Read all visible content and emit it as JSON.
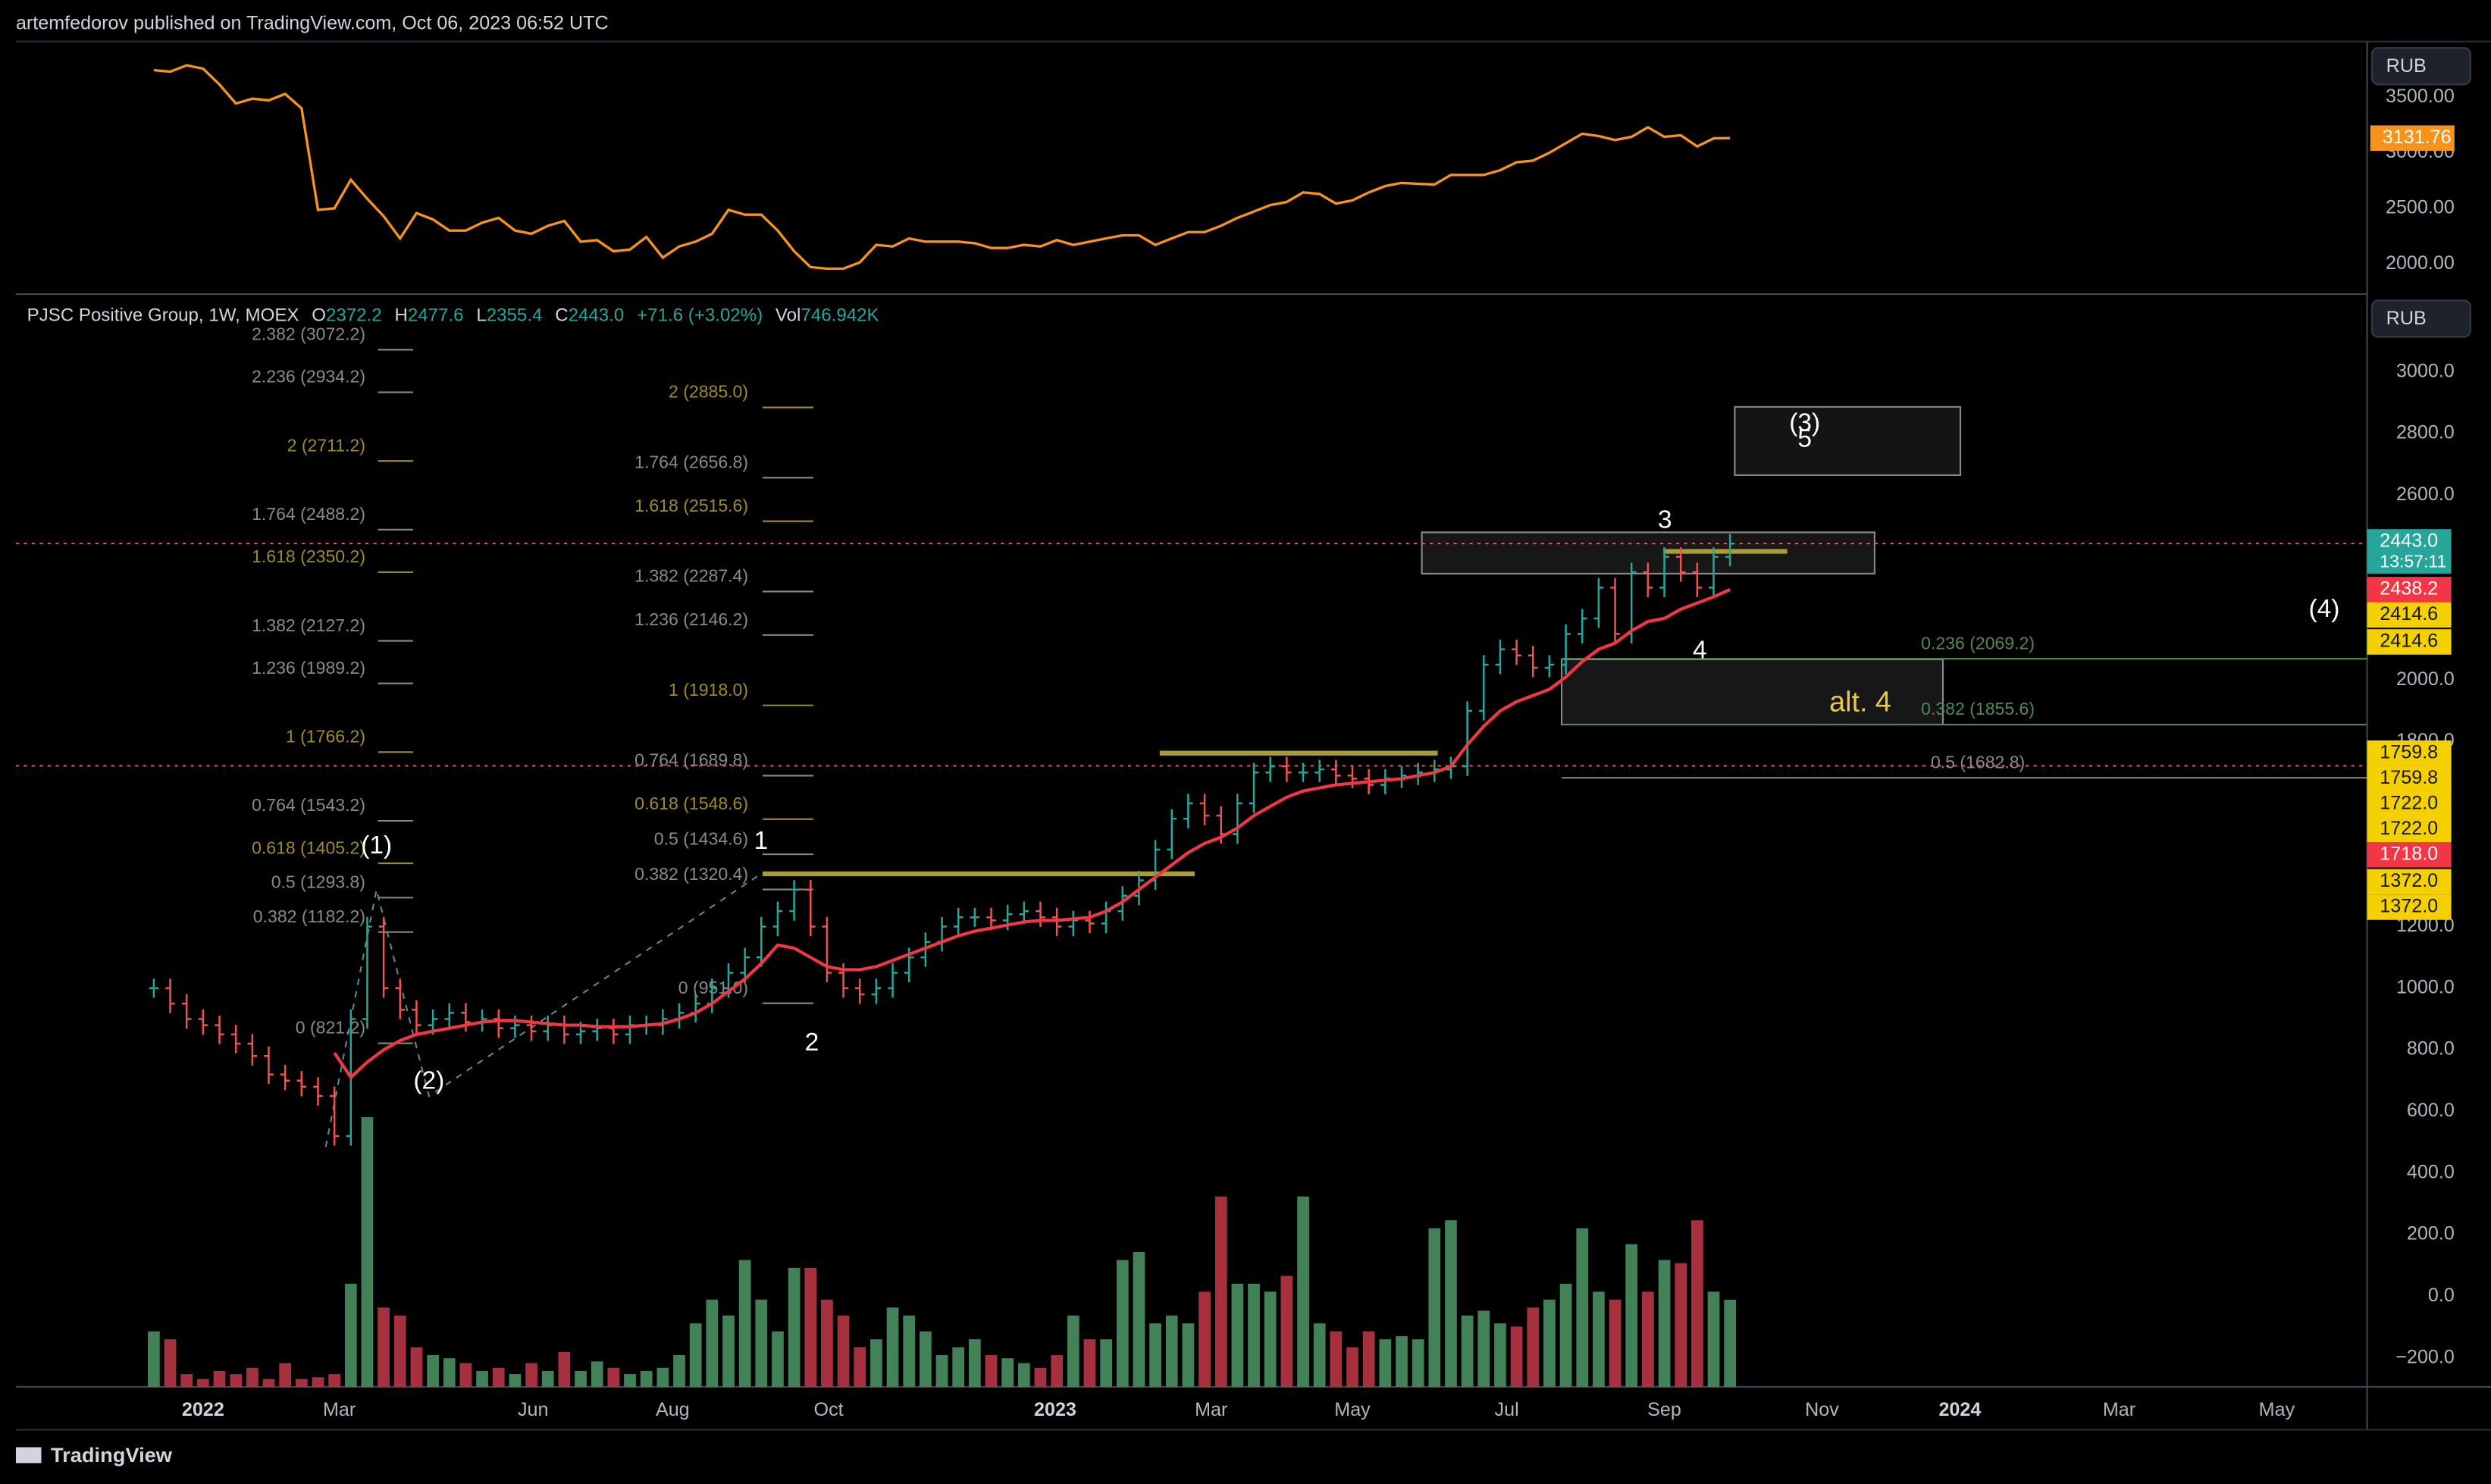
{
  "header": {
    "publisher": "artemfedorov published on TradingView.com, Oct 06, 2023 06:52 UTC"
  },
  "footer": {
    "brand": "TradingView"
  },
  "chart_data": [
    {
      "type": "line",
      "currency": "RUB",
      "color": "#f7931a",
      "x": [
        -3,
        -2,
        -1,
        0,
        1,
        2,
        3,
        4,
        5,
        6,
        7,
        8,
        9,
        10,
        11,
        12,
        13,
        14,
        15,
        16,
        17,
        18,
        19,
        20,
        21,
        22,
        23,
        24,
        25,
        26,
        27,
        28,
        29,
        30,
        31,
        32,
        33,
        34,
        35,
        36,
        37,
        38,
        39,
        40,
        41,
        42,
        43,
        44,
        45,
        46,
        47,
        48,
        49,
        50,
        51,
        52,
        53,
        54,
        55,
        56,
        57,
        58,
        59,
        60,
        61,
        62,
        63,
        64,
        65,
        66,
        67,
        68,
        69,
        70,
        71,
        72,
        73,
        74,
        75,
        76,
        77,
        78,
        79,
        80,
        81,
        82,
        83,
        84,
        85,
        86,
        87,
        88,
        89,
        90,
        91,
        92,
        93
      ],
      "values": [
        3743,
        3729,
        3786,
        3757,
        3614,
        3443,
        3486,
        3471,
        3529,
        3400,
        2486,
        2500,
        2757,
        2586,
        2429,
        2229,
        2457,
        2400,
        2300,
        2300,
        2371,
        2414,
        2300,
        2271,
        2343,
        2386,
        2200,
        2214,
        2114,
        2129,
        2243,
        2057,
        2157,
        2200,
        2271,
        2486,
        2443,
        2443,
        2300,
        2114,
        1971,
        1957,
        1957,
        2014,
        2171,
        2157,
        2229,
        2200,
        2200,
        2200,
        2186,
        2143,
        2143,
        2171,
        2157,
        2214,
        2171,
        2200,
        2230,
        2257,
        2257,
        2171,
        2229,
        2286,
        2286,
        2343,
        2414,
        2471,
        2529,
        2557,
        2643,
        2629,
        2543,
        2571,
        2643,
        2700,
        2729,
        2720,
        2714,
        2800,
        2800,
        2800,
        2843,
        2914,
        2929,
        3000,
        3086,
        3171,
        3150,
        3114,
        3143,
        3229,
        3143,
        3157,
        3057,
        3129,
        3131.76
      ],
      "last_label": "3131.76",
      "xlim": [
        -11.4,
        131.8
      ],
      "ylim": [
        1757,
        3986
      ],
      "yticks": [
        {
          "value": 2000,
          "label": "2000.00"
        },
        {
          "value": 2500,
          "label": "2500.00"
        },
        {
          "value": 3000,
          "label": "3000.00"
        },
        {
          "value": 3500,
          "label": "3500.00"
        }
      ]
    },
    {
      "type": "price",
      "title": "PJSC Positive Group, 1W, MOEX",
      "currency": "RUB",
      "legend": [
        {
          "key": "O",
          "value": "2372.2"
        },
        {
          "key": "H",
          "value": "2477.6"
        },
        {
          "key": "L",
          "value": "2355.4"
        },
        {
          "key": "C",
          "value": "2443.0"
        },
        {
          "key": "",
          "value": "+71.6 (+3.02%)"
        },
        {
          "key": "Vol",
          "value": "746.942K"
        }
      ],
      "up_color": "#26a69a",
      "down_color": "#ef5350",
      "ma_color": "#f23645",
      "x": [
        -3,
        -2,
        -1,
        0,
        1,
        2,
        3,
        4,
        5,
        6,
        7,
        8,
        9,
        10,
        11,
        12,
        13,
        14,
        15,
        16,
        17,
        18,
        19,
        20,
        21,
        22,
        23,
        24,
        25,
        26,
        27,
        28,
        29,
        30,
        31,
        32,
        33,
        34,
        35,
        36,
        37,
        38,
        39,
        40,
        41,
        42,
        43,
        44,
        45,
        46,
        47,
        48,
        49,
        50,
        51,
        52,
        53,
        54,
        55,
        56,
        57,
        58,
        59,
        60,
        61,
        62,
        63,
        64,
        65,
        66,
        67,
        68,
        69,
        70,
        71,
        72,
        73,
        74,
        75,
        76,
        77,
        78,
        79,
        80,
        81,
        82,
        83,
        84,
        85,
        86,
        87,
        88,
        89,
        90,
        91,
        92,
        93
      ],
      "close": [
        1000,
        950,
        900,
        880,
        850,
        820,
        780,
        720,
        700,
        680,
        650,
        520,
        900,
        1200,
        1000,
        930,
        880,
        900,
        920,
        890,
        900,
        870,
        880,
        860,
        880,
        850,
        860,
        870,
        850,
        880,
        880,
        900,
        920,
        950,
        1000,
        1050,
        1100,
        1200,
        1250,
        1320,
        1200,
        1050,
        1000,
        980,
        1000,
        1050,
        1100,
        1150,
        1200,
        1230,
        1230,
        1220,
        1240,
        1250,
        1230,
        1200,
        1220,
        1210,
        1250,
        1300,
        1350,
        1450,
        1550,
        1600,
        1560,
        1500,
        1600,
        1700,
        1720,
        1700,
        1700,
        1710,
        1690,
        1680,
        1660,
        1680,
        1690,
        1700,
        1710,
        1720,
        1900,
        2050,
        2100,
        2080,
        2040,
        2050,
        2150,
        2200,
        2300,
        2150,
        2350,
        2300,
        2400,
        2350,
        2300,
        2400,
        2443
      ],
      "ma": [
        null,
        null,
        null,
        null,
        null,
        null,
        null,
        null,
        null,
        null,
        null,
        790,
        711,
        760,
        800,
        830,
        850,
        860,
        870,
        880,
        890,
        895,
        895,
        890,
        885,
        880,
        880,
        875,
        875,
        875,
        880,
        885,
        900,
        920,
        950,
        990,
        1030,
        1080,
        1140,
        1130,
        1100,
        1070,
        1060,
        1060,
        1070,
        1090,
        1110,
        1130,
        1150,
        1170,
        1185,
        1195,
        1205,
        1215,
        1220,
        1220,
        1225,
        1230,
        1250,
        1280,
        1320,
        1360,
        1400,
        1440,
        1470,
        1490,
        1520,
        1560,
        1590,
        1620,
        1640,
        1650,
        1660,
        1665,
        1670,
        1675,
        1680,
        1690,
        1700,
        1720,
        1790,
        1850,
        1900,
        1930,
        1950,
        1970,
        2010,
        2060,
        2100,
        2120,
        2160,
        2190,
        2200,
        2230,
        2250,
        2270,
        2294
      ],
      "volume": [
        476,
        408,
        109,
        68,
        136,
        109,
        163,
        68,
        204,
        68,
        82,
        109,
        884,
        2312,
        680,
        612,
        340,
        272,
        245,
        204,
        136,
        163,
        109,
        204,
        136,
        299,
        136,
        218,
        163,
        109,
        136,
        163,
        272,
        544,
        748,
        612,
        1088,
        748,
        476,
        1020,
        1020,
        748,
        612,
        340,
        408,
        680,
        612,
        476,
        272,
        340,
        408,
        272,
        245,
        204,
        163,
        272,
        612,
        408,
        408,
        1088,
        1156,
        544,
        612,
        544,
        816,
        1632,
        884,
        884,
        816,
        952,
        1632,
        544,
        476,
        340,
        476,
        408,
        435,
        408,
        1360,
        1428,
        612,
        653,
        544,
        517,
        680,
        748,
        884,
        1360,
        816,
        748,
        1224,
        816,
        1088,
        1061,
        1428,
        816,
        747
      ],
      "volume_lim": [
        0,
        9300
      ],
      "xlim": [
        -11.4,
        131.8
      ],
      "xticks": [
        {
          "value": 0,
          "label": "2022"
        },
        {
          "value": 8.3,
          "label": "Mar"
        },
        {
          "value": 20.1,
          "label": "Jun"
        },
        {
          "value": 28.6,
          "label": "Aug"
        },
        {
          "value": 38.1,
          "label": "Oct"
        },
        {
          "value": 51.9,
          "label": "2023"
        },
        {
          "value": 61.4,
          "label": "Mar"
        },
        {
          "value": 70,
          "label": "May"
        },
        {
          "value": 79.4,
          "label": "Jul"
        },
        {
          "value": 89,
          "label": "Sep"
        },
        {
          "value": 98.6,
          "label": "Nov"
        },
        {
          "value": 107,
          "label": "2024"
        },
        {
          "value": 116.7,
          "label": "Mar"
        },
        {
          "value": 126.3,
          "label": "May"
        }
      ],
      "ylim": [
        -294,
        3227
      ],
      "yticks": [
        {
          "value": -200,
          "label": "−200.0"
        },
        {
          "value": 0,
          "label": "0.0"
        },
        {
          "value": 200,
          "label": "200.0"
        },
        {
          "value": 400,
          "label": "400.0"
        },
        {
          "value": 600,
          "label": "600.0"
        },
        {
          "value": 800,
          "label": "800.0"
        },
        {
          "value": 1000,
          "label": "1000.0"
        },
        {
          "value": 1200,
          "label": "1200.0"
        },
        {
          "value": 1800,
          "label": "1800.0"
        },
        {
          "value": 2000,
          "label": "2000.0"
        },
        {
          "value": 2600,
          "label": "2600.0"
        },
        {
          "value": 2800,
          "label": "2800.0"
        },
        {
          "value": 3000,
          "label": "3000.0"
        }
      ],
      "fib_sets": [
        {
          "levels": [
            {
              "label": "2.382 (3072.2)",
              "value": 3072.2,
              "color": "#8a8a8a"
            },
            {
              "label": "2.236 (2934.2)",
              "value": 2934.2,
              "color": "#8a8a8a"
            },
            {
              "label": "2 (2711.2)",
              "value": 2711.2,
              "color": "#9c8c2c"
            },
            {
              "label": "1.764 (2488.2)",
              "value": 2488.2,
              "color": "#8a8a8a"
            },
            {
              "label": "1.618 (2350.2)",
              "value": 2350.2,
              "color": "#9c8c2c"
            },
            {
              "label": "1.382 (2127.2)",
              "value": 2127.2,
              "color": "#8a8a8a"
            },
            {
              "label": "1.236 (1989.2)",
              "value": 1989.2,
              "color": "#8a8a8a"
            },
            {
              "label": "1 (1766.2)",
              "value": 1766.2,
              "color": "#9c8c2c"
            },
            {
              "label": "0.764 (1543.2)",
              "value": 1543.2,
              "color": "#8a8a8a"
            },
            {
              "label": "0.618 (1405.2)",
              "value": 1405.2,
              "color": "#9c8c2c"
            },
            {
              "label": "0.5 (1293.8)",
              "value": 1293.8,
              "color": "#8a8a8a"
            },
            {
              "label": "0.382 (1182.2)",
              "value": 1182.2,
              "color": "#8a8a8a"
            },
            {
              "label": "0 (821.2)",
              "value": 821.2,
              "color": "#8a8a8a"
            }
          ]
        },
        {
          "levels": [
            {
              "label": "2 (2885.0)",
              "value": 2885.0,
              "color": "#9c8c2c"
            },
            {
              "label": "1.764 (2656.8)",
              "value": 2656.8,
              "color": "#8a8a8a"
            },
            {
              "label": "1.618 (2515.6)",
              "value": 2515.6,
              "color": "#9c8c2c"
            },
            {
              "label": "1.382 (2287.4)",
              "value": 2287.4,
              "color": "#8a8a8a"
            },
            {
              "label": "1.236 (2146.2)",
              "value": 2146.2,
              "color": "#8a8a8a"
            },
            {
              "label": "1 (1918.0)",
              "value": 1918.0,
              "color": "#9c8c2c"
            },
            {
              "label": "0.764 (1689.8)",
              "value": 1689.8,
              "color": "#8a8a8a"
            },
            {
              "label": "0.618 (1548.6)",
              "value": 1548.6,
              "color": "#9c8c2c"
            },
            {
              "label": "0.5 (1434.6)",
              "value": 1434.6,
              "color": "#8a8a8a"
            },
            {
              "label": "0.382 (1320.4)",
              "value": 1320.4,
              "color": "#8a8a8a"
            },
            {
              "label": "0 (951.0)",
              "value": 951.0,
              "color": "#8a8a8a"
            }
          ]
        },
        {
          "levels": [
            {
              "label": "0.236 (2069.2)",
              "value": 2069.2,
              "color": "#4f8a55"
            },
            {
              "label": "0.382 (1855.6)",
              "value": 1855.6,
              "color": "#4f8a55"
            },
            {
              "label": "0.5 (1682.8)",
              "value": 1682.8,
              "color": "#8a8a8a"
            }
          ]
        }
      ],
      "waves": [
        "(1)",
        "(2)",
        "1",
        "2",
        "3",
        "4",
        "(3)",
        "5",
        "(4)"
      ],
      "alt_label": "alt. 4",
      "price_tags": [
        {
          "label": "2443.0",
          "sub": "13:57:11",
          "color": "#26a69a"
        },
        {
          "label": "2438.2",
          "color": "#f23645"
        },
        {
          "label": "2414.6",
          "color": "#f5d000"
        },
        {
          "label": "2414.6",
          "color": "#f5d000"
        },
        {
          "label": "1759.8",
          "color": "#f5d000"
        },
        {
          "label": "1759.8",
          "color": "#f5d000"
        },
        {
          "label": "1722.0",
          "color": "#f5d000"
        },
        {
          "label": "1722.0",
          "color": "#f5d000"
        },
        {
          "label": "1718.0",
          "color": "#f23645"
        },
        {
          "label": "1372.0",
          "color": "#f5d000"
        },
        {
          "label": "1372.0",
          "color": "#f5d000"
        }
      ]
    }
  ]
}
